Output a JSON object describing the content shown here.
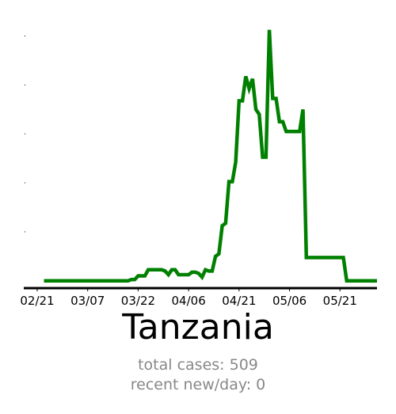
{
  "chart_data": {
    "type": "line",
    "title": "Tanzania",
    "xlabel": "",
    "ylabel": "",
    "x_tick_labels": [
      "02/21",
      "03/07",
      "03/22",
      "04/06",
      "04/21",
      "05/06",
      "05/21"
    ],
    "x_tick_days": [
      0,
      15,
      30,
      45,
      60,
      75,
      90
    ],
    "x_range_days": [
      -4,
      101
    ],
    "x_start_day": 2,
    "ylim": [
      -0.3,
      10.5
    ],
    "grid": false,
    "line_color": "#008000",
    "series": [
      {
        "name": "",
        "values": [
          0,
          0,
          0,
          0,
          0,
          0,
          0,
          0,
          0,
          0,
          0,
          0,
          0,
          0,
          0,
          0,
          0,
          0,
          0,
          0,
          0,
          0,
          0,
          0,
          0,
          0,
          0.05,
          0.05,
          0.2,
          0.2,
          0.2,
          0.45,
          0.45,
          0.45,
          0.45,
          0.45,
          0.4,
          0.25,
          0.45,
          0.45,
          0.25,
          0.25,
          0.25,
          0.25,
          0.35,
          0.35,
          0.3,
          0.15,
          0.45,
          0.4,
          0.4,
          1.0,
          1.1,
          2.25,
          2.35,
          4.05,
          4.05,
          4.85,
          7.35,
          7.35,
          8.35,
          7.85,
          8.25,
          7.0,
          6.8,
          5.05,
          5.05,
          10.25,
          7.45,
          7.45,
          6.5,
          6.5,
          6.1,
          6.1,
          6.1,
          6.1,
          6.1,
          7.0,
          0.95,
          0.95,
          0.95,
          0.95,
          0.95,
          0.95,
          0.95,
          0.95,
          0.95,
          0.95,
          0.95,
          0.95,
          0,
          0,
          0,
          0,
          0,
          0,
          0,
          0,
          0,
          0
        ]
      }
    ]
  },
  "stats": {
    "total_cases": "total cases: 509",
    "recent_new_per_day": "recent new/day: 0"
  },
  "colors": {
    "line": "#008000",
    "axis": "#000000",
    "stats_text": "#888888"
  }
}
